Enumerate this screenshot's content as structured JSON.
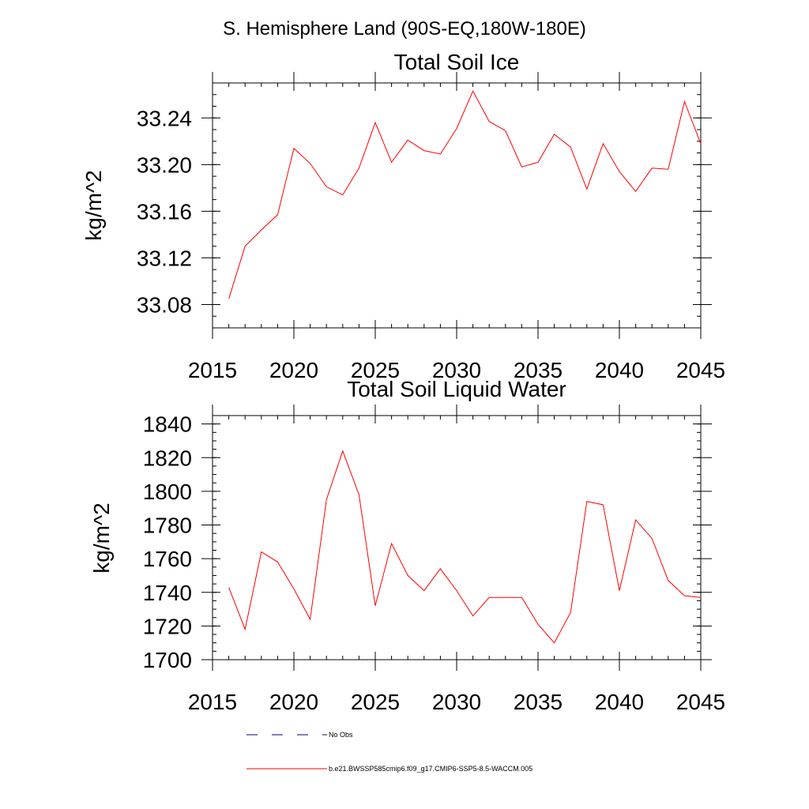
{
  "page_title": "S. Hemisphere Land (90S-EQ,180W-180E)",
  "chart_data": [
    {
      "type": "line",
      "title": "Total Soil Ice",
      "ylabel": "kg/m^2",
      "xlim": [
        2015,
        2045
      ],
      "ylim": [
        33.06,
        33.27
      ],
      "x_ticks": [
        2015,
        2020,
        2025,
        2030,
        2035,
        2040,
        2045
      ],
      "x_tick_labels": [
        "2015",
        "2020",
        "2025",
        "2030",
        "2035",
        "2040",
        "2045"
      ],
      "y_ticks": [
        33.08,
        33.12,
        33.16,
        33.2,
        33.24
      ],
      "y_tick_labels": [
        "33.08",
        "33.12",
        "33.16",
        "33.20",
        "33.24"
      ],
      "series": [
        {
          "color": "#ff0000",
          "x": [
            2016,
            2017,
            2018,
            2019,
            2020,
            2021,
            2022,
            2023,
            2024,
            2025,
            2026,
            2027,
            2028,
            2029,
            2030,
            2031,
            2032,
            2033,
            2034,
            2035,
            2036,
            2037,
            2038,
            2039,
            2040,
            2041,
            2042,
            2043,
            2044,
            2045
          ],
          "values": [
            33.085,
            33.13,
            33.144,
            33.157,
            33.214,
            33.201,
            33.181,
            33.174,
            33.197,
            33.236,
            33.202,
            33.221,
            33.212,
            33.209,
            33.231,
            33.263,
            33.237,
            33.229,
            33.198,
            33.202,
            33.226,
            33.215,
            33.179,
            33.218,
            33.194,
            33.177,
            33.197,
            33.196,
            33.254,
            33.218
          ]
        }
      ]
    },
    {
      "type": "line",
      "title": "Total Soil Liquid Water",
      "ylabel": "kg/m^2",
      "xlim": [
        2015,
        2045
      ],
      "ylim": [
        1700,
        1845
      ],
      "x_ticks": [
        2015,
        2020,
        2025,
        2030,
        2035,
        2040,
        2045
      ],
      "x_tick_labels": [
        "2015",
        "2020",
        "2025",
        "2030",
        "2035",
        "2040",
        "2045"
      ],
      "y_ticks": [
        1700,
        1720,
        1740,
        1760,
        1780,
        1800,
        1820,
        1840
      ],
      "y_tick_labels": [
        "1700",
        "1720",
        "1740",
        "1760",
        "1780",
        "1800",
        "1820",
        "1840"
      ],
      "series": [
        {
          "color": "#ff0000",
          "x": [
            2016,
            2017,
            2018,
            2019,
            2020,
            2021,
            2022,
            2023,
            2024,
            2025,
            2026,
            2027,
            2028,
            2029,
            2030,
            2031,
            2032,
            2033,
            2034,
            2035,
            2036,
            2037,
            2038,
            2039,
            2040,
            2041,
            2042,
            2043,
            2044,
            2045
          ],
          "values": [
            1743,
            1718,
            1764,
            1758,
            1742,
            1724,
            1795,
            1824,
            1798,
            1732,
            1769,
            1750,
            1741,
            1754,
            1741,
            1726,
            1737,
            1737,
            1737,
            1721,
            1710,
            1728,
            1794,
            1792,
            1741,
            1783,
            1772,
            1747,
            1738,
            1737
          ]
        }
      ]
    }
  ],
  "legend": [
    {
      "label": "No Obs",
      "color": "#000080",
      "dash": "dashed"
    },
    {
      "label": "b.e21.BWSSP585cmip6.f09_g17.CMIP6-SSP5-8.5-WACCM.005",
      "color": "#ff0000",
      "dash": "solid"
    }
  ]
}
